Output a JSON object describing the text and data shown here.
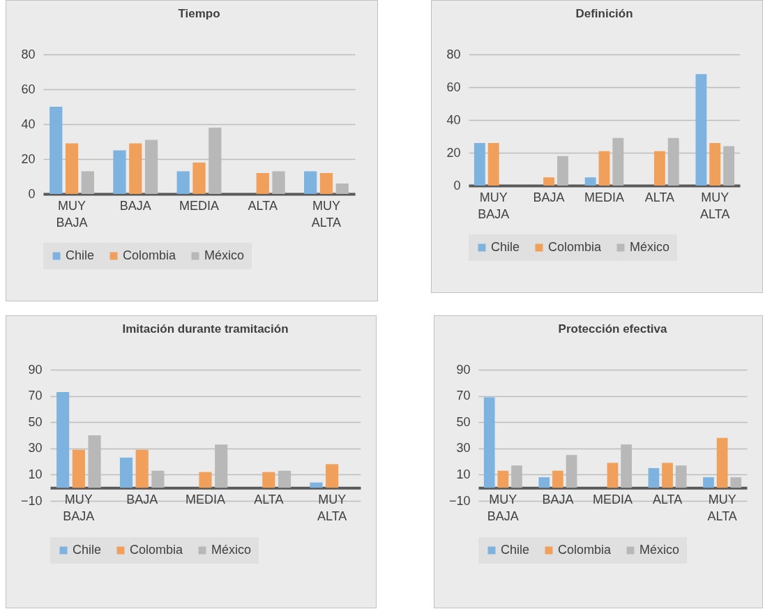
{
  "chart_data": [
    {
      "type": "bar",
      "title": "Tiempo",
      "categories": [
        "MUY BAJA",
        "BAJA",
        "MEDIA",
        "ALTA",
        "MUY ALTA"
      ],
      "series": [
        {
          "name": "Chile",
          "color": "#7eb3e0",
          "values": [
            50,
            25,
            13,
            0,
            13
          ]
        },
        {
          "name": "Colombia",
          "color": "#f0a05a",
          "values": [
            29,
            29,
            18,
            12,
            12
          ]
        },
        {
          "name": "México",
          "color": "#b8b8b8",
          "values": [
            13,
            31,
            38,
            13,
            6
          ]
        }
      ],
      "ylim": [
        0,
        80
      ],
      "yticks": [
        0,
        20,
        40,
        60,
        80
      ],
      "grid": "y",
      "legend": "bottom"
    },
    {
      "type": "bar",
      "title": "Definición",
      "categories": [
        "MUY BAJA",
        "BAJA",
        "MEDIA",
        "ALTA",
        "MUY ALTA"
      ],
      "series": [
        {
          "name": "Chile",
          "color": "#7eb3e0",
          "values": [
            26,
            0,
            5,
            0,
            68
          ]
        },
        {
          "name": "Colombia",
          "color": "#f0a05a",
          "values": [
            26,
            5,
            21,
            21,
            26
          ]
        },
        {
          "name": "México",
          "color": "#b8b8b8",
          "values": [
            0,
            18,
            29,
            29,
            24
          ]
        }
      ],
      "ylim": [
        0,
        80
      ],
      "yticks": [
        0,
        20,
        40,
        60,
        80
      ],
      "grid": "y",
      "legend": "bottom"
    },
    {
      "type": "bar",
      "title": "Imitación durante tramitación",
      "categories": [
        "MUY BAJA",
        "BAJA",
        "MEDIA",
        "ALTA",
        "MUY ALTA"
      ],
      "series": [
        {
          "name": "Chile",
          "color": "#7eb3e0",
          "values": [
            73,
            23,
            0,
            0,
            4
          ]
        },
        {
          "name": "Colombia",
          "color": "#f0a05a",
          "values": [
            29,
            29,
            12,
            12,
            18
          ]
        },
        {
          "name": "México",
          "color": "#b8b8b8",
          "values": [
            40,
            13,
            33,
            13,
            0
          ]
        }
      ],
      "ylim": [
        -10,
        90
      ],
      "yticks": [
        -10,
        10,
        30,
        50,
        70,
        90
      ],
      "grid": "y",
      "legend": "bottom"
    },
    {
      "type": "bar",
      "title": "Protección efectiva",
      "categories": [
        "MUY BAJA",
        "BAJA",
        "MEDIA",
        "ALTA",
        "MUY ALTA"
      ],
      "series": [
        {
          "name": "Chile",
          "color": "#7eb3e0",
          "values": [
            69,
            8,
            0,
            15,
            8
          ]
        },
        {
          "name": "Colombia",
          "color": "#f0a05a",
          "values": [
            13,
            13,
            19,
            19,
            38
          ]
        },
        {
          "name": "México",
          "color": "#b8b8b8",
          "values": [
            17,
            25,
            33,
            17,
            8
          ]
        }
      ],
      "ylim": [
        -10,
        90
      ],
      "yticks": [
        -10,
        10,
        30,
        50,
        70,
        90
      ],
      "grid": "y",
      "legend": "bottom"
    }
  ]
}
